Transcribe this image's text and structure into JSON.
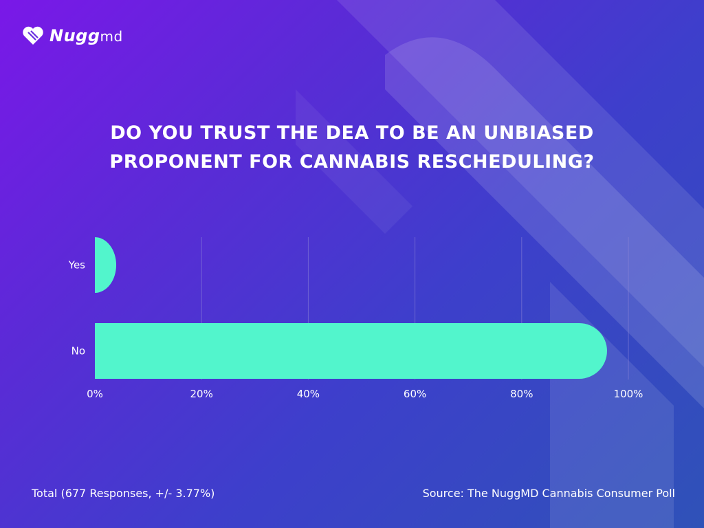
{
  "brand": {
    "logo_text": "Nugg",
    "logo_suffix": "md"
  },
  "colors": {
    "background_start": "#7a18e8",
    "background_end": "#2f52b8",
    "bar": "#52f5cc",
    "grid": "#8f86d8",
    "text": "#ffffff"
  },
  "chart_data": {
    "type": "bar",
    "orientation": "horizontal",
    "title": "DO YOU TRUST THE DEA TO BE AN UNBIASED PROPONENT FOR CANNABIS RESCHEDULING?",
    "categories": [
      "Yes",
      "No"
    ],
    "values": [
      4,
      96
    ],
    "xticks": [
      "0%",
      "20%",
      "40%",
      "60%",
      "80%",
      "100%"
    ],
    "xlim": [
      0,
      100
    ],
    "grid": true,
    "legend": "none"
  },
  "footer": {
    "total": "Total (677 Responses, +/- 3.77%)",
    "source": "Source: The NuggMD Cannabis Consumer Poll"
  }
}
